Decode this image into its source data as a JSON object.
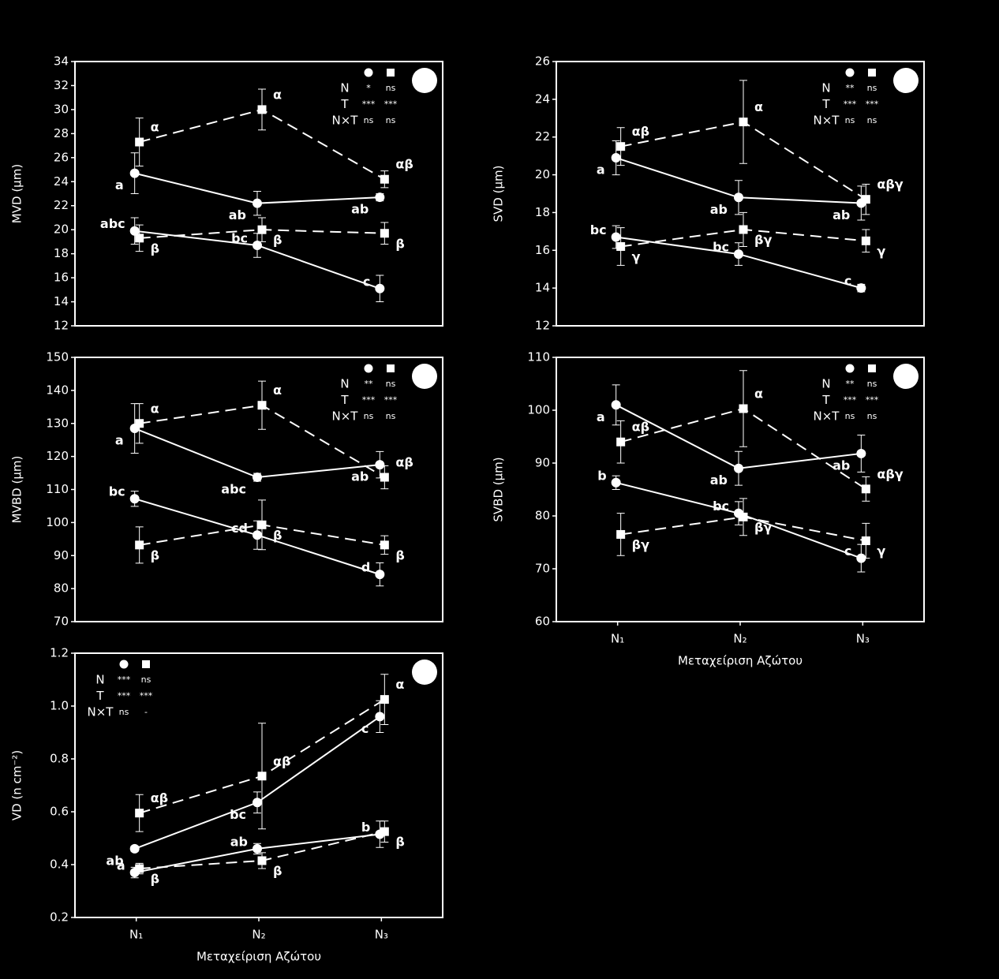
{
  "chart_data": [
    {
      "type": "line",
      "ylabel": "MVD (μm)",
      "categories": [
        null,
        null,
        null
      ],
      "ylim": [
        12,
        34
      ],
      "yticks": [
        12,
        14,
        16,
        18,
        20,
        22,
        24,
        26,
        28,
        30,
        32,
        34
      ],
      "legend": "upper right",
      "stats": [
        [
          "N",
          "*",
          "ns"
        ],
        [
          "T",
          "***",
          "***"
        ],
        [
          "N×T",
          "ns",
          "ns"
        ]
      ],
      "series": [
        {
          "marker": "circle",
          "dashed": false,
          "color": "#ffffff",
          "values": [
            24.7,
            22.2,
            22.7
          ],
          "errors": [
            1.7,
            1.0,
            0.3
          ],
          "letters": [
            "a",
            "ab",
            "ab"
          ]
        },
        {
          "marker": "square",
          "dashed": true,
          "color": "#ffffff",
          "values": [
            27.3,
            30.0,
            24.2
          ],
          "errors": [
            2.0,
            1.7,
            0.7
          ],
          "letters": [
            "α",
            "α",
            "αβ"
          ]
        },
        {
          "marker": "circle",
          "dashed": false,
          "color": "#ffffff",
          "values": [
            19.9,
            18.7,
            15.1
          ],
          "errors": [
            1.1,
            1.0,
            1.1
          ],
          "letters": [
            "abc",
            "bc",
            "c"
          ]
        },
        {
          "marker": "square",
          "dashed": true,
          "color": "#ffffff",
          "values": [
            19.3,
            20.0,
            19.7
          ],
          "errors": [
            1.1,
            1.0,
            0.9
          ],
          "letters": [
            "β",
            "β",
            "β"
          ]
        }
      ]
    },
    {
      "type": "line",
      "ylabel": "SVD (μm)",
      "categories": [
        null,
        null,
        null
      ],
      "ylim": [
        12,
        26
      ],
      "yticks": [
        12,
        14,
        16,
        18,
        20,
        22,
        24,
        26
      ],
      "legend": "upper right",
      "stats": [
        [
          "N",
          "**",
          "ns"
        ],
        [
          "T",
          "***",
          "***"
        ],
        [
          "N×T",
          "ns",
          "ns"
        ]
      ],
      "series": [
        {
          "marker": "circle",
          "dashed": false,
          "color": "#ffffff",
          "values": [
            20.9,
            18.8,
            18.5
          ],
          "errors": [
            0.9,
            0.9,
            0.9
          ],
          "letters": [
            "a",
            "ab",
            "ab"
          ]
        },
        {
          "marker": "square",
          "dashed": true,
          "color": "#ffffff",
          "values": [
            21.5,
            22.8,
            18.7
          ],
          "errors": [
            1.0,
            2.2,
            0.8
          ],
          "letters": [
            "αβ",
            "α",
            "αβγ"
          ]
        },
        {
          "marker": "circle",
          "dashed": false,
          "color": "#ffffff",
          "values": [
            16.7,
            15.8,
            14.0
          ],
          "errors": [
            0.6,
            0.6,
            0.2
          ],
          "letters": [
            "bc",
            "bc",
            "c"
          ]
        },
        {
          "marker": "square",
          "dashed": true,
          "color": "#ffffff",
          "values": [
            16.2,
            17.1,
            16.5
          ],
          "errors": [
            1.0,
            0.9,
            0.6
          ],
          "letters": [
            "γ",
            "βγ",
            "γ"
          ]
        }
      ]
    },
    {
      "type": "line",
      "ylabel": "MVBD (μm)",
      "categories": [
        null,
        null,
        null
      ],
      "ylim": [
        70,
        150
      ],
      "yticks": [
        70,
        80,
        90,
        100,
        110,
        120,
        130,
        140,
        150
      ],
      "legend": "upper right",
      "stats": [
        [
          "N",
          "**",
          "ns"
        ],
        [
          "T",
          "***",
          "***"
        ],
        [
          "N×T",
          "ns",
          "ns"
        ]
      ],
      "series": [
        {
          "marker": "circle",
          "dashed": false,
          "color": "#ffffff",
          "values": [
            128.5,
            113.7,
            117.5
          ],
          "errors": [
            7.5,
            1.2,
            4
          ],
          "letters": [
            "a",
            "abc",
            "ab"
          ]
        },
        {
          "marker": "square",
          "dashed": true,
          "color": "#ffffff",
          "values": [
            130,
            135.5,
            113.7
          ],
          "errors": [
            6,
            7.3,
            3.5
          ],
          "letters": [
            "α",
            "α",
            "αβ"
          ]
        },
        {
          "marker": "circle",
          "dashed": false,
          "color": "#ffffff",
          "values": [
            107.2,
            96.2,
            84.3
          ],
          "errors": [
            2.3,
            4.3,
            3.5
          ],
          "letters": [
            "bc",
            "cd",
            "d"
          ]
        },
        {
          "marker": "square",
          "dashed": true,
          "color": "#ffffff",
          "values": [
            93.2,
            99.3,
            93.2
          ],
          "errors": [
            5.5,
            7.5,
            2.8
          ],
          "letters": [
            "β",
            "β",
            "β"
          ]
        }
      ]
    },
    {
      "type": "line",
      "ylabel": "SVBD (μm)",
      "xlabel": "Μεταχείριση Αζώτου",
      "categories": [
        "N₁",
        "N₂",
        "N₃"
      ],
      "ylim": [
        60,
        110
      ],
      "yticks": [
        60,
        70,
        80,
        90,
        100,
        110
      ],
      "legend": "upper right",
      "stats": [
        [
          "N",
          "**",
          "ns"
        ],
        [
          "T",
          "***",
          "***"
        ],
        [
          "N×T",
          "ns",
          "ns"
        ]
      ],
      "series": [
        {
          "marker": "circle",
          "dashed": false,
          "color": "#ffffff",
          "values": [
            101,
            89,
            91.8
          ],
          "errors": [
            3.8,
            3.2,
            3.5
          ],
          "letters": [
            "a",
            "ab",
            "ab"
          ]
        },
        {
          "marker": "square",
          "dashed": true,
          "color": "#ffffff",
          "values": [
            94,
            100.3,
            85.1
          ],
          "errors": [
            4,
            7.2,
            2.3
          ],
          "letters": [
            "αβ",
            "α",
            "αβγ"
          ]
        },
        {
          "marker": "circle",
          "dashed": false,
          "color": "#ffffff",
          "values": [
            86.3,
            80.5,
            72
          ],
          "errors": [
            1.3,
            2.2,
            2.6
          ],
          "letters": [
            "b",
            "bc",
            "c"
          ]
        },
        {
          "marker": "square",
          "dashed": true,
          "color": "#ffffff",
          "values": [
            76.5,
            79.8,
            75.3
          ],
          "errors": [
            4,
            3.5,
            3.3
          ],
          "letters": [
            "βγ",
            "βγ",
            "γ"
          ]
        }
      ]
    },
    {
      "type": "line",
      "ylabel": "VD (n cm⁻²)",
      "xlabel": "Μεταχείριση Αζώτου",
      "categories": [
        "N₁",
        "N₂",
        "N₃"
      ],
      "ylim": [
        0.2,
        1.2
      ],
      "yticks": [
        0.2,
        0.4,
        0.6,
        0.8,
        {
          "value": 1,
          "label": "1.0"
        },
        1.2
      ],
      "legend": "upper left",
      "stats": [
        [
          "N",
          "***",
          "ns"
        ],
        [
          "T",
          "***",
          "***"
        ],
        [
          "N×T",
          "ns",
          "-"
        ]
      ],
      "series": [
        {
          "marker": "circle",
          "dashed": false,
          "color": "#ffffff",
          "values": [
            0.46,
            0.635,
            0.96
          ],
          "errors": [
            0.01,
            0.04,
            0.06
          ],
          "letters": [
            "ab",
            "bc",
            "c"
          ]
        },
        {
          "marker": "square",
          "dashed": true,
          "color": "#ffffff",
          "values": [
            0.595,
            0.735,
            1.025
          ],
          "errors": [
            0.07,
            0.2,
            0.095
          ],
          "letters": [
            "αβ",
            "αβ",
            "α"
          ]
        },
        {
          "marker": "circle",
          "dashed": false,
          "color": "#ffffff",
          "values": [
            0.37,
            0.46,
            0.515
          ],
          "errors": [
            0.02,
            0.02,
            0.05
          ],
          "letters": [
            "a",
            "ab",
            "b"
          ]
        },
        {
          "marker": "square",
          "dashed": true,
          "color": "#ffffff",
          "values": [
            0.385,
            0.415,
            0.525
          ],
          "errors": [
            0.02,
            0.03,
            0.04
          ],
          "letters": [
            "β",
            "β",
            "β"
          ]
        }
      ]
    }
  ]
}
